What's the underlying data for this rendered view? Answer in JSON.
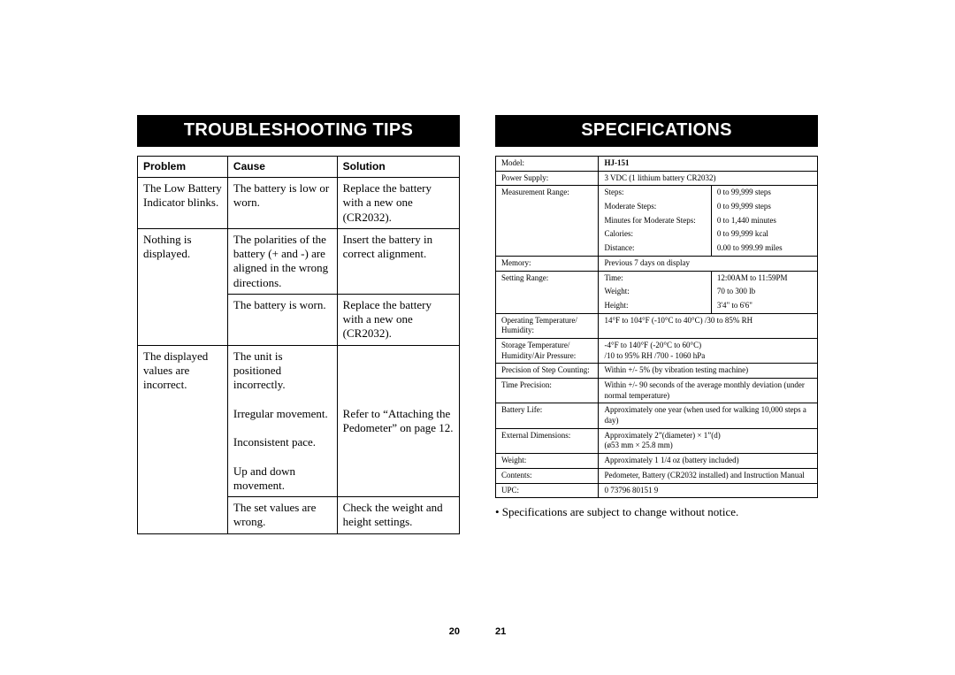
{
  "left": {
    "heading": "TROUBLESHOOTING TIPS",
    "headers": {
      "problem": "Problem",
      "cause": "Cause",
      "solution": "Solution"
    },
    "rows": {
      "r1": {
        "problem": "The Low Battery Indicator blinks.",
        "cause": "The battery is low or worn.",
        "solution": "Replace the battery with a new one (CR2032)."
      },
      "r2": {
        "problem": "Nothing is displayed.",
        "cause1": "The polarities of the battery (+ and -) are aligned in the wrong directions.",
        "solution1": "Insert the battery in correct alignment.",
        "cause2": "The battery is worn.",
        "solution2": "Replace the battery with a new one (CR2032)."
      },
      "r3": {
        "problem": "The displayed values are incorrect.",
        "cause_block": "The unit is positioned incorrectly.\n\nIrregular movement.\n\nInconsistent pace.\n\nUp and down movement.",
        "solution1": "Refer to “Attaching the Pedometer” on page 12.",
        "cause2": "The set values are wrong.",
        "solution2": "Check the weight and height settings."
      }
    },
    "page_number": "20"
  },
  "right": {
    "heading": "SPECIFICATIONS",
    "rows": {
      "model_k": "Model:",
      "model_v": "HJ-151",
      "power_k": "Power Supply:",
      "power_v": "3 VDC (1 lithium battery CR2032)",
      "meas_k": "Measurement Range:",
      "meas": {
        "steps_k": "Steps:",
        "steps_v": "0 to 99,999 steps",
        "msteps_k": "Moderate Steps:",
        "msteps_v": "0 to 99,999 steps",
        "min_k": "Minutes for Moderate Steps:",
        "min_v": "0 to 1,440 minutes",
        "cal_k": "Calories:",
        "cal_v": "0 to 99,999 kcal",
        "dist_k": "Distance:",
        "dist_v": "0.00 to 999.99 miles"
      },
      "mem_k": "Memory:",
      "mem_v": "Previous  7 days on display",
      "set_k": "Setting Range:",
      "set": {
        "time_k": "Time:",
        "time_v": "12:00AM to 11:59PM",
        "weight_k": "Weight:",
        "weight_v": "70 to 300 lb",
        "height_k": "Height:",
        "height_v": "3'4\" to 6'6\""
      },
      "optemp_k": "Operating Temperature/ Humidity:",
      "optemp_v": "14°F to 104°F (-10°C to 40°C) /30 to 85% RH",
      "stor_k": "Storage Temperature/ Humidity/Air Pressure:",
      "stor_v": "-4°F to 140°F (-20°C to 60°C)\n/10 to 95% RH /700 - 1060 hPa",
      "prec_k": "Precision of Step Counting:",
      "prec_v": "Within +/- 5% (by vibration testing machine)",
      "timep_k": "Time Precision:",
      "timep_v": "Within +/- 90 seconds of the average monthly deviation (under normal temperature)",
      "batt_k": "Battery Life:",
      "batt_v": "Approximately one year (when used for walking 10,000 steps a day)",
      "dim_k": "External Dimensions:",
      "dim_v": "Approximately 2”(diameter) × 1”(d)\n(ø53 mm × 25.8 mm)",
      "weight_k": "Weight:",
      "weight_v": "Approximately 1 1/4 oz (battery included)",
      "cont_k": "Contents:",
      "cont_v": "Pedometer, Battery (CR2032 installed) and Instruction Manual",
      "upc_k": "UPC:",
      "upc_v": "0 73796 80151 9"
    },
    "note": "• Specifications are subject to change without notice.",
    "page_number": "21"
  }
}
